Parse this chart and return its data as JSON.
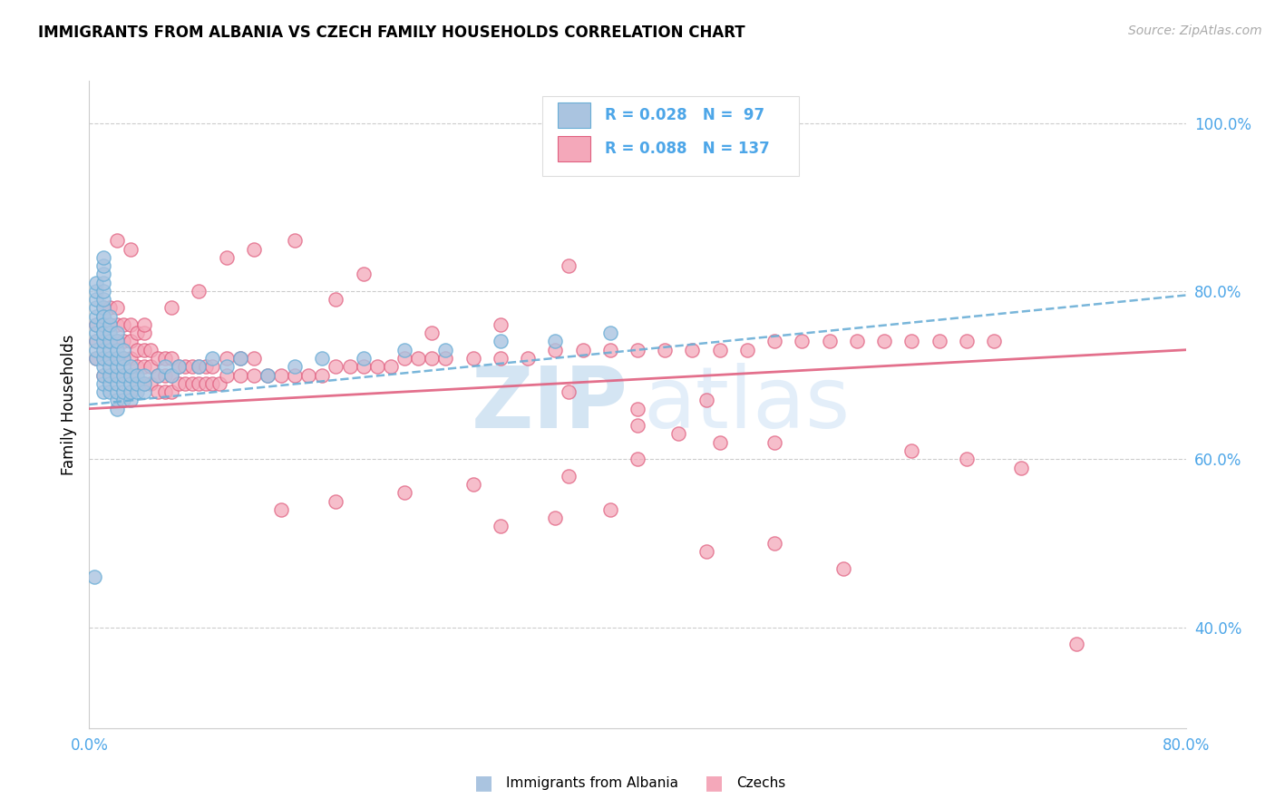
{
  "title": "IMMIGRANTS FROM ALBANIA VS CZECH FAMILY HOUSEHOLDS CORRELATION CHART",
  "source": "Source: ZipAtlas.com",
  "ylabel": "Family Households",
  "legend_label1": "Immigrants from Albania",
  "legend_label2": "Czechs",
  "color_albania": "#aac4e0",
  "color_czech": "#f4a8ba",
  "color_line_albania": "#6aaed6",
  "color_line_czech": "#e06080",
  "color_ticks": "#4da6e8",
  "watermark_zip": "ZIP",
  "watermark_atlas": "atlas",
  "xlim": [
    0.0,
    0.8
  ],
  "ylim": [
    0.28,
    1.05
  ],
  "albania_x": [
    0.005,
    0.005,
    0.005,
    0.005,
    0.005,
    0.005,
    0.005,
    0.005,
    0.005,
    0.005,
    0.01,
    0.01,
    0.01,
    0.01,
    0.01,
    0.01,
    0.01,
    0.01,
    0.01,
    0.01,
    0.01,
    0.01,
    0.01,
    0.01,
    0.01,
    0.01,
    0.01,
    0.01,
    0.01,
    0.01,
    0.015,
    0.015,
    0.015,
    0.015,
    0.015,
    0.015,
    0.015,
    0.015,
    0.015,
    0.015,
    0.02,
    0.02,
    0.02,
    0.02,
    0.02,
    0.02,
    0.02,
    0.02,
    0.02,
    0.02,
    0.025,
    0.025,
    0.025,
    0.025,
    0.025,
    0.025,
    0.025,
    0.03,
    0.03,
    0.03,
    0.03,
    0.03,
    0.035,
    0.035,
    0.035,
    0.04,
    0.04,
    0.04,
    0.05,
    0.055,
    0.06,
    0.065,
    0.08,
    0.09,
    0.1,
    0.11,
    0.13,
    0.15,
    0.17,
    0.2,
    0.23,
    0.26,
    0.3,
    0.34,
    0.38,
    0.004
  ],
  "albania_y": [
    0.72,
    0.73,
    0.74,
    0.75,
    0.76,
    0.77,
    0.78,
    0.79,
    0.8,
    0.81,
    0.68,
    0.69,
    0.7,
    0.71,
    0.72,
    0.73,
    0.74,
    0.75,
    0.76,
    0.77,
    0.78,
    0.79,
    0.8,
    0.81,
    0.82,
    0.83,
    0.84,
    0.77,
    0.76,
    0.75,
    0.68,
    0.69,
    0.7,
    0.71,
    0.72,
    0.73,
    0.74,
    0.75,
    0.76,
    0.77,
    0.66,
    0.67,
    0.68,
    0.69,
    0.7,
    0.71,
    0.72,
    0.73,
    0.74,
    0.75,
    0.67,
    0.68,
    0.69,
    0.7,
    0.71,
    0.72,
    0.73,
    0.67,
    0.68,
    0.69,
    0.7,
    0.71,
    0.68,
    0.69,
    0.7,
    0.68,
    0.69,
    0.7,
    0.7,
    0.71,
    0.7,
    0.71,
    0.71,
    0.72,
    0.71,
    0.72,
    0.7,
    0.71,
    0.72,
    0.72,
    0.73,
    0.73,
    0.74,
    0.74,
    0.75,
    0.46
  ],
  "czech_x": [
    0.005,
    0.005,
    0.005,
    0.01,
    0.01,
    0.01,
    0.01,
    0.01,
    0.015,
    0.015,
    0.015,
    0.015,
    0.015,
    0.02,
    0.02,
    0.02,
    0.02,
    0.02,
    0.025,
    0.025,
    0.025,
    0.025,
    0.03,
    0.03,
    0.03,
    0.03,
    0.03,
    0.035,
    0.035,
    0.035,
    0.035,
    0.04,
    0.04,
    0.04,
    0.04,
    0.045,
    0.045,
    0.045,
    0.05,
    0.05,
    0.05,
    0.055,
    0.055,
    0.055,
    0.06,
    0.06,
    0.06,
    0.065,
    0.065,
    0.07,
    0.07,
    0.075,
    0.075,
    0.08,
    0.08,
    0.085,
    0.085,
    0.09,
    0.09,
    0.095,
    0.1,
    0.1,
    0.11,
    0.11,
    0.12,
    0.12,
    0.13,
    0.14,
    0.15,
    0.16,
    0.17,
    0.18,
    0.19,
    0.2,
    0.21,
    0.22,
    0.23,
    0.24,
    0.25,
    0.26,
    0.28,
    0.3,
    0.32,
    0.34,
    0.36,
    0.38,
    0.4,
    0.42,
    0.44,
    0.46,
    0.48,
    0.5,
    0.52,
    0.54,
    0.56,
    0.58,
    0.6,
    0.62,
    0.64,
    0.66,
    0.2,
    0.25,
    0.3,
    0.35,
    0.15,
    0.18,
    0.12,
    0.1,
    0.08,
    0.06,
    0.04,
    0.03,
    0.02,
    0.35,
    0.4,
    0.45,
    0.5,
    0.4,
    0.35,
    0.28,
    0.23,
    0.18,
    0.14,
    0.4,
    0.43,
    0.46,
    0.38,
    0.34,
    0.3,
    0.5,
    0.45,
    0.55,
    0.6,
    0.64,
    0.68,
    0.72
  ],
  "czech_y": [
    0.72,
    0.74,
    0.76,
    0.7,
    0.72,
    0.74,
    0.76,
    0.78,
    0.7,
    0.72,
    0.74,
    0.76,
    0.78,
    0.7,
    0.72,
    0.74,
    0.76,
    0.78,
    0.7,
    0.72,
    0.74,
    0.76,
    0.68,
    0.7,
    0.72,
    0.74,
    0.76,
    0.69,
    0.71,
    0.73,
    0.75,
    0.69,
    0.71,
    0.73,
    0.75,
    0.69,
    0.71,
    0.73,
    0.68,
    0.7,
    0.72,
    0.68,
    0.7,
    0.72,
    0.68,
    0.7,
    0.72,
    0.69,
    0.71,
    0.69,
    0.71,
    0.69,
    0.71,
    0.69,
    0.71,
    0.69,
    0.71,
    0.69,
    0.71,
    0.69,
    0.7,
    0.72,
    0.7,
    0.72,
    0.7,
    0.72,
    0.7,
    0.7,
    0.7,
    0.7,
    0.7,
    0.71,
    0.71,
    0.71,
    0.71,
    0.71,
    0.72,
    0.72,
    0.72,
    0.72,
    0.72,
    0.72,
    0.72,
    0.73,
    0.73,
    0.73,
    0.73,
    0.73,
    0.73,
    0.73,
    0.73,
    0.74,
    0.74,
    0.74,
    0.74,
    0.74,
    0.74,
    0.74,
    0.74,
    0.74,
    0.82,
    0.75,
    0.76,
    0.83,
    0.86,
    0.79,
    0.85,
    0.84,
    0.8,
    0.78,
    0.76,
    0.85,
    0.86,
    0.68,
    0.66,
    0.67,
    0.62,
    0.6,
    0.58,
    0.57,
    0.56,
    0.55,
    0.54,
    0.64,
    0.63,
    0.62,
    0.54,
    0.53,
    0.52,
    0.5,
    0.49,
    0.47,
    0.61,
    0.6,
    0.59,
    0.38
  ],
  "albania_trend": [
    0.0,
    0.8,
    0.665,
    0.795
  ],
  "czech_trend": [
    0.0,
    0.8,
    0.66,
    0.73
  ]
}
